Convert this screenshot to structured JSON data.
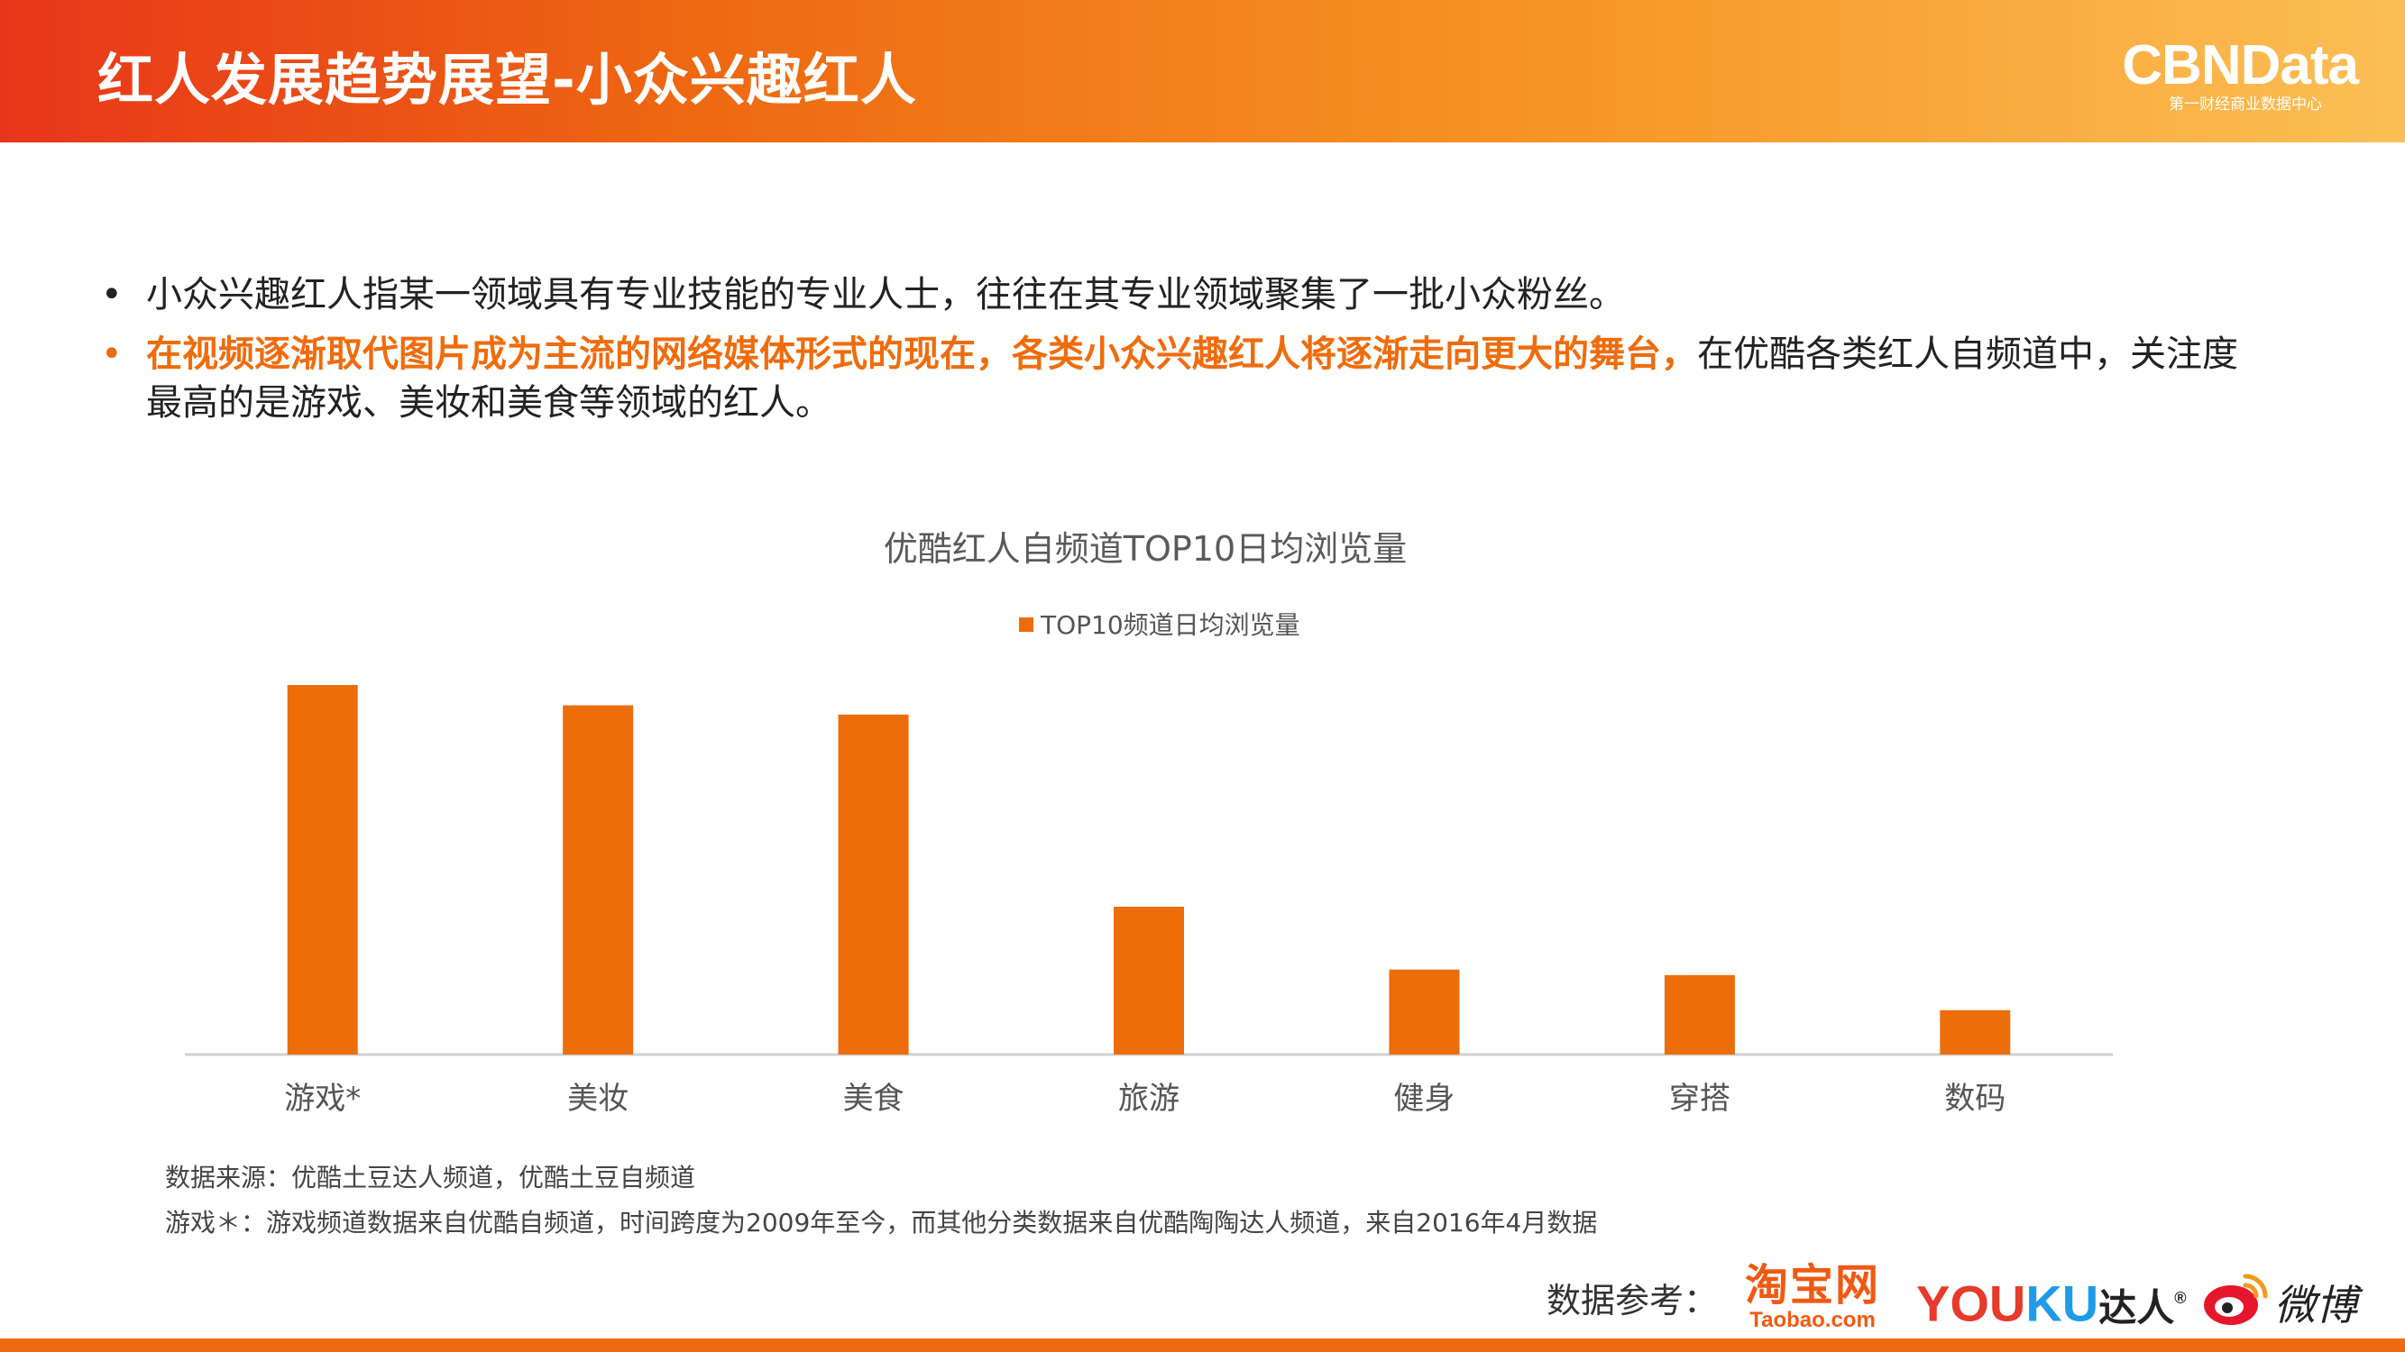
{
  "header": {
    "title": "红人发展趋势展望-小众兴趣红人",
    "brand": "CBNData",
    "brand_sub": "第一财经商业数据中心"
  },
  "bullets": [
    {
      "marker": "•",
      "text": "小众兴趣红人指某一领域具有专业技能的专业人士，往往在其专业领域聚集了一批小众粉丝。"
    },
    {
      "marker": "•",
      "highlight": "在视频逐渐取代图片成为主流的网络媒体形式的现在，各类小众兴趣红人将逐渐走向更大的舞台，",
      "text": "在优酷各类红人自频道中，关注度最高的是游戏、美妆和美食等领域的红人。"
    }
  ],
  "chart_data": {
    "type": "bar",
    "title": "优酷红人自频道TOP10日均浏览量",
    "categories": [
      "游戏*",
      "美妆",
      "美食",
      "旅游",
      "健身",
      "穿搭",
      "数码"
    ],
    "series": [
      {
        "name": "TOP10频道日均浏览量",
        "values": [
          100,
          94.5,
          92,
          40,
          23,
          21.5,
          12
        ]
      }
    ],
    "ylim": [
      0,
      100
    ],
    "grid": false,
    "legend": "top-center",
    "color": "#ed6d0a"
  },
  "notes": {
    "source": "数据来源：优酷土豆达人频道，优酷土豆自频道",
    "footnote": "游戏＊：游戏频道数据来自优酷自频道，时间跨度为2009年至今，而其他分类数据来自优酷陶陶达人频道，来自2016年4月数据"
  },
  "references": {
    "label": "数据参考：",
    "taobao_cn": "淘宝网",
    "taobao_en": "Taobao.com",
    "youku_you": "YOU",
    "youku_ku": "KU",
    "youku_daren": "达人",
    "weibo": "微博"
  },
  "colors": {
    "accent": "#ef6c0c",
    "bar": "#ed6d0a"
  }
}
